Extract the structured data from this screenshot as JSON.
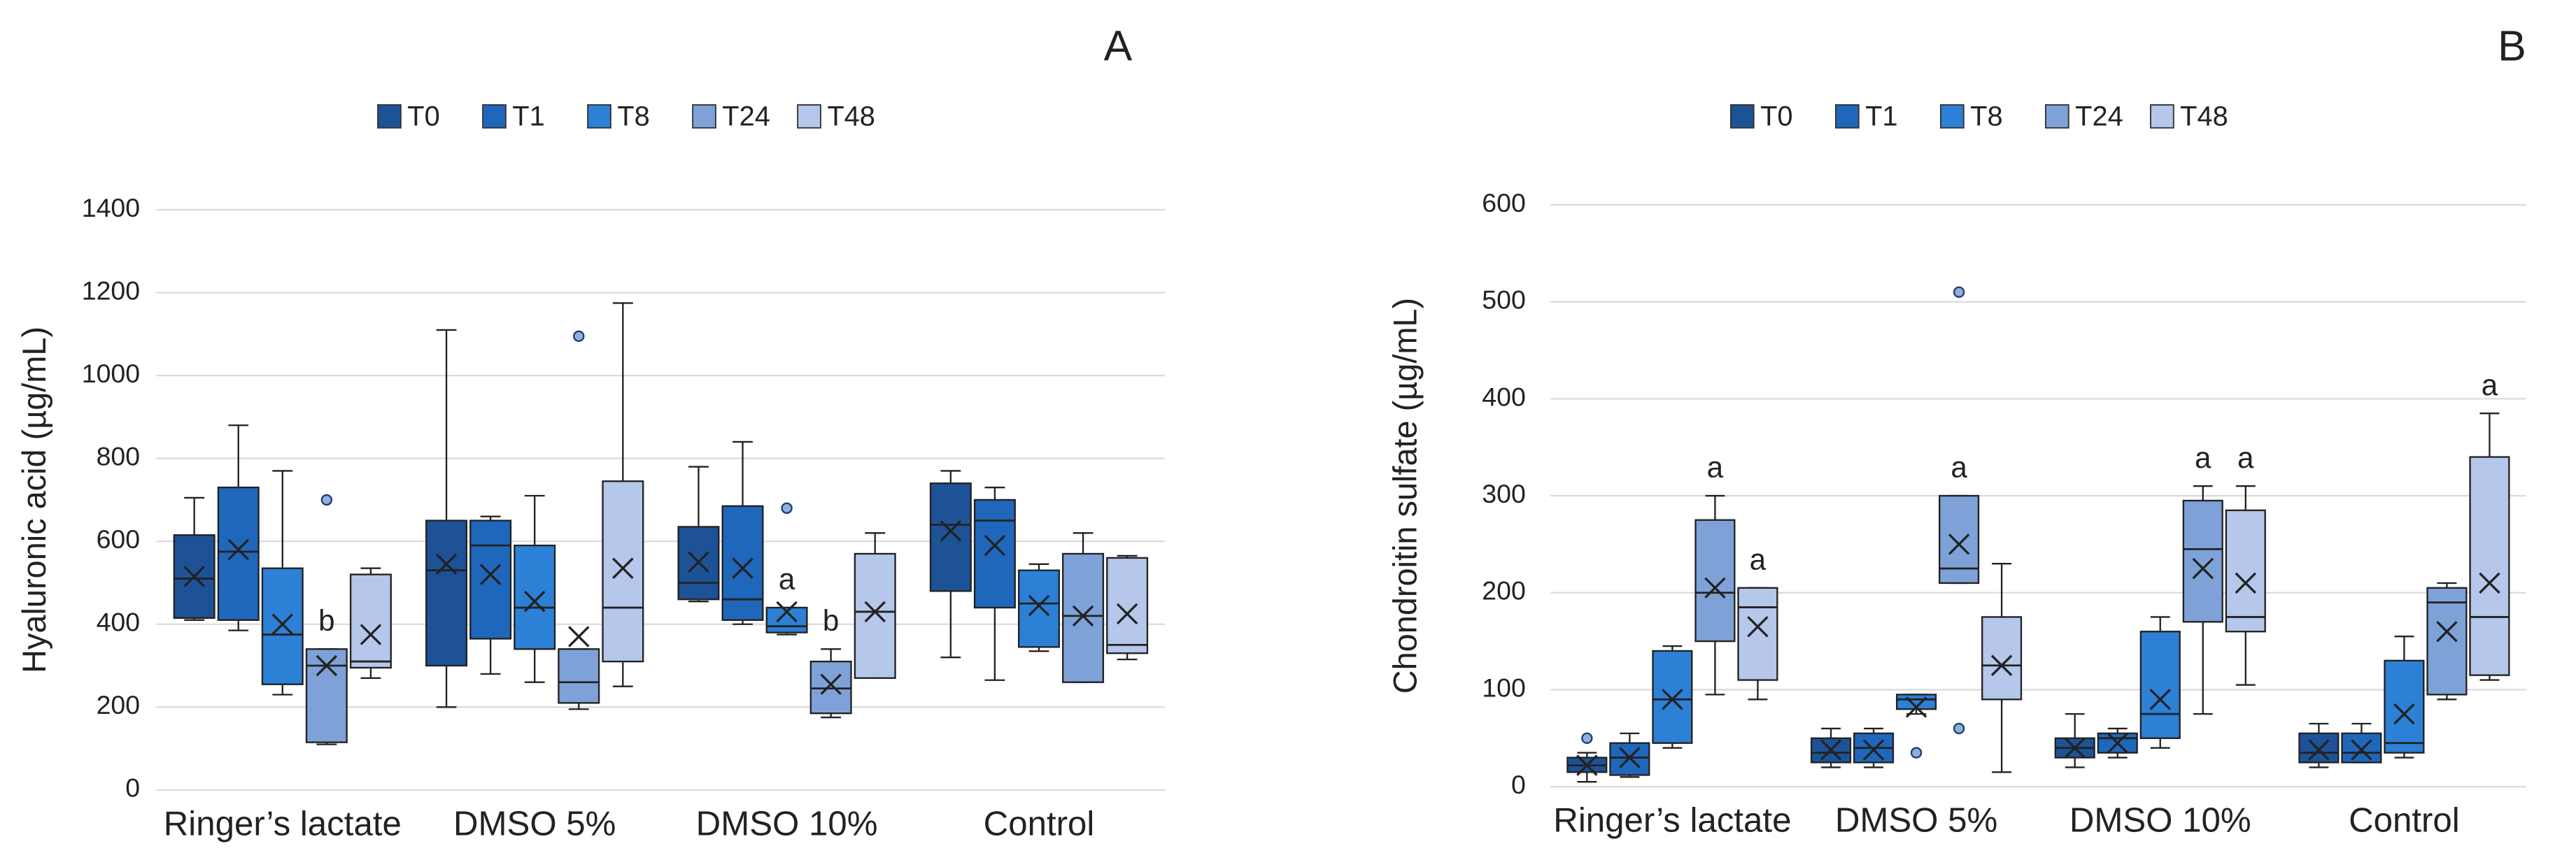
{
  "chart_data": [
    {
      "type": "box",
      "panel_label": "A",
      "y_label": "Hyaluronic acid (µg/mL)",
      "categories": [
        "Ringer’s lactate",
        "DMSO 5%",
        "DMSO 10%",
        "Control"
      ],
      "ylim": [
        0,
        1400
      ],
      "yticks": [
        0,
        200,
        400,
        600,
        800,
        1000,
        1200,
        1400
      ],
      "grid": true,
      "legend": "top",
      "series": [
        {
          "name": "T0",
          "color": "#1d5296",
          "values": [
            {
              "min": 410,
              "q1": 415,
              "median": 510,
              "q3": 615,
              "max": 705,
              "mean": 515,
              "outliers": []
            },
            {
              "min": 200,
              "q1": 300,
              "median": 530,
              "q3": 650,
              "max": 1110,
              "mean": 545,
              "outliers": []
            },
            {
              "min": 455,
              "q1": 460,
              "median": 500,
              "q3": 635,
              "max": 780,
              "mean": 550,
              "outliers": []
            },
            {
              "min": 320,
              "q1": 480,
              "median": 640,
              "q3": 740,
              "max": 770,
              "mean": 625,
              "outliers": []
            }
          ]
        },
        {
          "name": "T1",
          "color": "#1f67bb",
          "values": [
            {
              "min": 385,
              "q1": 410,
              "median": 575,
              "q3": 730,
              "max": 880,
              "mean": 580,
              "outliers": []
            },
            {
              "min": 280,
              "q1": 365,
              "median": 590,
              "q3": 650,
              "max": 660,
              "mean": 520,
              "outliers": []
            },
            {
              "min": 400,
              "q1": 410,
              "median": 460,
              "q3": 685,
              "max": 840,
              "mean": 535,
              "outliers": []
            },
            {
              "min": 265,
              "q1": 440,
              "median": 650,
              "q3": 700,
              "max": 730,
              "mean": 590,
              "outliers": []
            }
          ]
        },
        {
          "name": "T8",
          "color": "#2c80d5",
          "values": [
            {
              "min": 230,
              "q1": 255,
              "median": 375,
              "q3": 535,
              "max": 770,
              "mean": 400,
              "outliers": []
            },
            {
              "min": 260,
              "q1": 340,
              "median": 440,
              "q3": 590,
              "max": 710,
              "mean": 455,
              "outliers": []
            },
            {
              "min": 375,
              "q1": 380,
              "median": 395,
              "q3": 440,
              "max": 440,
              "mean": 430,
              "outliers": [
                680
              ],
              "label": "a"
            },
            {
              "min": 335,
              "q1": 345,
              "median": 450,
              "q3": 530,
              "max": 545,
              "mean": 445,
              "outliers": []
            }
          ]
        },
        {
          "name": "T24",
          "color": "#7ea2d8",
          "values": [
            {
              "min": 110,
              "q1": 115,
              "median": 300,
              "q3": 340,
              "max": 340,
              "mean": 300,
              "outliers": [
                700
              ],
              "label": "b"
            },
            {
              "min": 195,
              "q1": 210,
              "median": 260,
              "q3": 340,
              "max": 340,
              "mean": 370,
              "outliers": [
                1095
              ]
            },
            {
              "min": 175,
              "q1": 185,
              "median": 245,
              "q3": 310,
              "max": 340,
              "mean": 255,
              "outliers": [],
              "label": "b"
            },
            {
              "min": 260,
              "q1": 260,
              "median": 420,
              "q3": 570,
              "max": 620,
              "mean": 420,
              "outliers": []
            }
          ]
        },
        {
          "name": "T48",
          "color": "#b5c7ea",
          "values": [
            {
              "min": 270,
              "q1": 295,
              "median": 310,
              "q3": 520,
              "max": 535,
              "mean": 375,
              "outliers": []
            },
            {
              "min": 250,
              "q1": 310,
              "median": 440,
              "q3": 745,
              "max": 1175,
              "mean": 535,
              "outliers": []
            },
            {
              "min": 270,
              "q1": 270,
              "median": 430,
              "q3": 570,
              "max": 620,
              "mean": 430,
              "outliers": []
            },
            {
              "min": 315,
              "q1": 330,
              "median": 350,
              "q3": 560,
              "max": 565,
              "mean": 425,
              "outliers": []
            }
          ]
        }
      ]
    },
    {
      "type": "box",
      "panel_label": "B",
      "y_label": "Chondroitin sulfate (µg/mL)",
      "categories": [
        "Ringer’s lactate",
        "DMSO 5%",
        "DMSO 10%",
        "Control"
      ],
      "ylim": [
        0,
        600
      ],
      "yticks": [
        0,
        100,
        200,
        300,
        400,
        500,
        600
      ],
      "grid": true,
      "legend": "top",
      "series": [
        {
          "name": "T0",
          "color": "#1d5296",
          "values": [
            {
              "min": 5,
              "q1": 15,
              "median": 22,
              "q3": 30,
              "max": 35,
              "mean": 22,
              "outliers": [
                50
              ]
            },
            {
              "min": 20,
              "q1": 25,
              "median": 35,
              "q3": 50,
              "max": 60,
              "mean": 38,
              "outliers": []
            },
            {
              "min": 20,
              "q1": 30,
              "median": 40,
              "q3": 50,
              "max": 75,
              "mean": 40,
              "outliers": []
            },
            {
              "min": 20,
              "q1": 25,
              "median": 35,
              "q3": 55,
              "max": 65,
              "mean": 38,
              "outliers": []
            }
          ]
        },
        {
          "name": "T1",
          "color": "#1f67bb",
          "values": [
            {
              "min": 10,
              "q1": 12,
              "median": 30,
              "q3": 45,
              "max": 55,
              "mean": 30,
              "outliers": []
            },
            {
              "min": 20,
              "q1": 25,
              "median": 40,
              "q3": 55,
              "max": 60,
              "mean": 38,
              "outliers": []
            },
            {
              "min": 30,
              "q1": 35,
              "median": 50,
              "q3": 55,
              "max": 60,
              "mean": 45,
              "outliers": []
            },
            {
              "min": 25,
              "q1": 25,
              "median": 35,
              "q3": 55,
              "max": 65,
              "mean": 38,
              "outliers": []
            }
          ]
        },
        {
          "name": "T8",
          "color": "#2c80d5",
          "values": [
            {
              "min": 40,
              "q1": 45,
              "median": 90,
              "q3": 140,
              "max": 145,
              "mean": 90,
              "outliers": []
            },
            {
              "min": 75,
              "q1": 80,
              "median": 90,
              "q3": 95,
              "max": 95,
              "mean": 82,
              "outliers": [
                35
              ]
            },
            {
              "min": 40,
              "q1": 50,
              "median": 75,
              "q3": 160,
              "max": 175,
              "mean": 90,
              "outliers": []
            },
            {
              "min": 30,
              "q1": 35,
              "median": 45,
              "q3": 130,
              "max": 155,
              "mean": 75,
              "outliers": []
            }
          ]
        },
        {
          "name": "T24",
          "color": "#7ea2d8",
          "values": [
            {
              "min": 95,
              "q1": 150,
              "median": 200,
              "q3": 275,
              "max": 300,
              "mean": 205,
              "outliers": [],
              "label": "a"
            },
            {
              "min": 210,
              "q1": 210,
              "median": 225,
              "q3": 300,
              "max": 300,
              "mean": 250,
              "outliers": [
                510,
                60
              ],
              "label": "a"
            },
            {
              "min": 75,
              "q1": 170,
              "median": 245,
              "q3": 295,
              "max": 310,
              "mean": 225,
              "outliers": [],
              "label": "a"
            },
            {
              "min": 90,
              "q1": 95,
              "median": 190,
              "q3": 205,
              "max": 210,
              "mean": 160,
              "outliers": []
            }
          ]
        },
        {
          "name": "T48",
          "color": "#b5c7ea",
          "values": [
            {
              "min": 90,
              "q1": 110,
              "median": 185,
              "q3": 205,
              "max": 205,
              "mean": 165,
              "outliers": [],
              "label": "a"
            },
            {
              "min": 15,
              "q1": 90,
              "median": 125,
              "q3": 175,
              "max": 230,
              "mean": 125,
              "outliers": []
            },
            {
              "min": 105,
              "q1": 160,
              "median": 175,
              "q3": 285,
              "max": 310,
              "mean": 210,
              "outliers": [],
              "label": "a"
            },
            {
              "min": 110,
              "q1": 115,
              "median": 175,
              "q3": 340,
              "max": 385,
              "mean": 210,
              "outliers": [],
              "label": "a"
            }
          ]
        }
      ]
    }
  ]
}
